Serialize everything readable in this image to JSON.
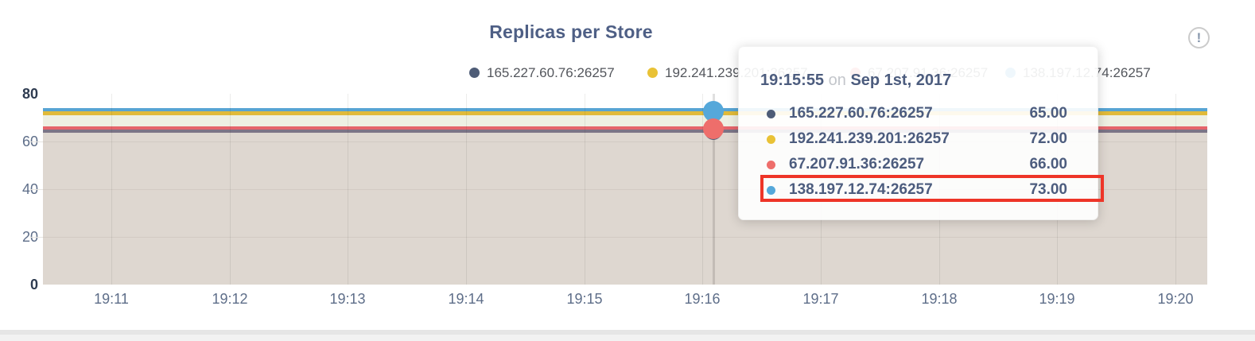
{
  "header": {
    "title": "Replicas per Store",
    "info_glyph": "!"
  },
  "colors": {
    "series_dark": "#4e5c77",
    "series_yellow": "#e9c236",
    "series_red": "#ee6e6b",
    "series_blue": "#55a8da",
    "line_dark": "#7b7486",
    "line_red": "#e5656b",
    "line_yellow": "#e0ba3a",
    "line_blue": "#57a4d4",
    "area_lower": "#ded7d0",
    "area_mid": "#eef0e3",
    "highlight_box": "#ee3528",
    "title_text": "#4e5f85",
    "axis_text": "#5e6e89",
    "axis_text_strong": "#2e3b50",
    "legend_text": "#53565c",
    "tooltip_text": "#4c5c7e",
    "tooltip_on": "#c3c6cb",
    "info_icon": "#8595ab"
  },
  "legend": {
    "items": [
      {
        "label": "165.227.60.76:26257"
      },
      {
        "label": "192.241.239.201:26257"
      },
      {
        "label": "67.207.91.36:26257"
      },
      {
        "label": "138.197.12.74:26257"
      }
    ]
  },
  "chart_data": {
    "type": "line",
    "title": "Replicas per Store",
    "xlabel": "",
    "ylabel": "",
    "x_ticks": [
      "19:11",
      "19:12",
      "19:13",
      "19:14",
      "19:15",
      "19:16",
      "19:17",
      "19:18",
      "19:19",
      "19:20"
    ],
    "y_ticks": [
      0,
      20,
      40,
      60,
      80
    ],
    "y_tick_labels": [
      "80",
      "60",
      "40",
      "20",
      "0"
    ],
    "ylim": [
      0,
      80
    ],
    "grid": true,
    "legend_position": "top",
    "series": [
      {
        "name": "165.227.60.76:26257",
        "color": "#4e5c77",
        "values": [
          65,
          65,
          65,
          65,
          65,
          65,
          65,
          65,
          65,
          65
        ]
      },
      {
        "name": "192.241.239.201:26257",
        "color": "#e9c236",
        "values": [
          72,
          72,
          72,
          72,
          72,
          72,
          72,
          72,
          72,
          72
        ]
      },
      {
        "name": "67.207.91.36:26257",
        "color": "#ee6e6b",
        "values": [
          66,
          66,
          66,
          66,
          66,
          66,
          66,
          66,
          66,
          66
        ]
      },
      {
        "name": "138.197.12.74:26257",
        "color": "#55a8da",
        "values": [
          73,
          73,
          73,
          73,
          73,
          73,
          73,
          73,
          73,
          73
        ]
      }
    ],
    "hovered_point": {
      "time": "19:15:55",
      "date": "Sep 1st, 2017"
    }
  },
  "tooltip": {
    "time": "19:15:55",
    "connector": "on",
    "date": "Sep 1st, 2017",
    "rows": [
      {
        "label": "165.227.60.76:26257",
        "value": "65.00"
      },
      {
        "label": "192.241.239.201:26257",
        "value": "72.00"
      },
      {
        "label": "67.207.91.36:26257",
        "value": "66.00"
      },
      {
        "label": "138.197.12.74:26257",
        "value": "73.00"
      }
    ],
    "highlighted_row": "138.197.12.74:26257"
  }
}
